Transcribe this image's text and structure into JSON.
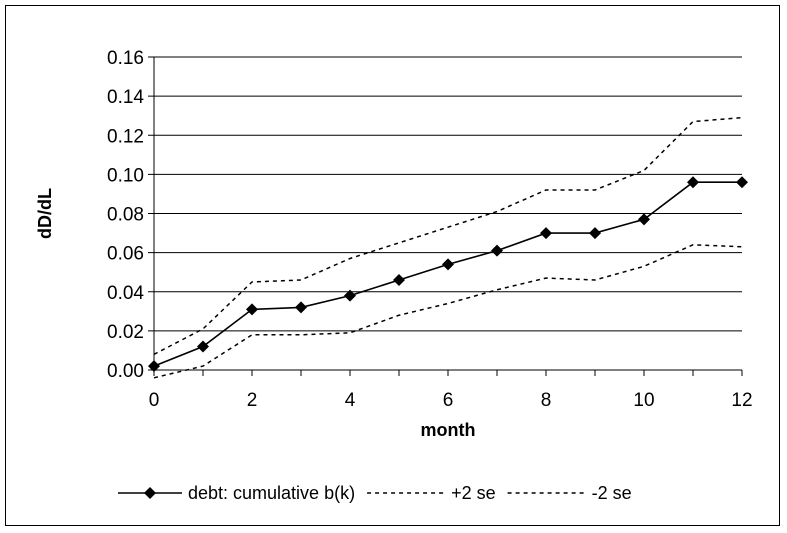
{
  "chart_data": {
    "type": "line",
    "title": "",
    "xlabel": "month",
    "ylabel": "dD/dL",
    "xlim": [
      0,
      12
    ],
    "ylim": [
      0,
      0.16
    ],
    "x_ticks": [
      "0",
      "2",
      "4",
      "6",
      "8",
      "10",
      "12"
    ],
    "y_ticks": [
      "0.00",
      "0.02",
      "0.04",
      "0.06",
      "0.08",
      "0.10",
      "0.12",
      "0.14",
      "0.16"
    ],
    "grid": "horizontal",
    "legend_position": "bottom",
    "x": [
      0,
      1,
      2,
      3,
      4,
      5,
      6,
      7,
      8,
      9,
      10,
      11,
      12
    ],
    "series": [
      {
        "name": "debt: cumulative b(k)",
        "style": "solid-diamond",
        "values": [
          0.002,
          0.012,
          0.031,
          0.032,
          0.038,
          0.046,
          0.054,
          0.061,
          0.07,
          0.07,
          0.077,
          0.096,
          0.096
        ]
      },
      {
        "name": "+2 se",
        "style": "dashed",
        "values": [
          0.008,
          0.021,
          0.045,
          0.046,
          0.057,
          0.065,
          0.073,
          0.081,
          0.092,
          0.092,
          0.102,
          0.127,
          0.129
        ]
      },
      {
        "name": "-2 se",
        "style": "dashed",
        "values": [
          -0.004,
          0.002,
          0.018,
          0.018,
          0.019,
          0.028,
          0.034,
          0.041,
          0.047,
          0.046,
          0.053,
          0.064,
          0.063
        ]
      }
    ],
    "colors": {
      "line": "#000000",
      "grid": "#000000",
      "background": "#ffffff"
    }
  }
}
